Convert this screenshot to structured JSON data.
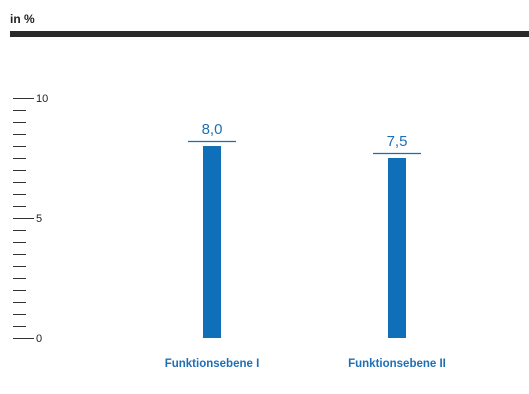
{
  "unit_label": "in %",
  "colors": {
    "bar": "#0f6fb8",
    "accent_text": "#1f6fb5",
    "axis": "#333333",
    "header_rule": "#2a2a2a"
  },
  "chart_data": {
    "type": "bar",
    "categories": [
      "Funktionsebene I",
      "Funktionsebene II"
    ],
    "values": [
      8.0,
      7.5
    ],
    "value_labels": [
      "8,0",
      "7,5"
    ],
    "ylim": [
      0,
      10
    ],
    "yticks": [
      {
        "value": 0,
        "label": "0"
      },
      {
        "value": 5,
        "label": "5"
      },
      {
        "value": 10,
        "label": "10"
      }
    ],
    "minor_tick_step": 0.5,
    "title": "",
    "xlabel": "",
    "ylabel": "",
    "grid": false,
    "legend": "none"
  }
}
